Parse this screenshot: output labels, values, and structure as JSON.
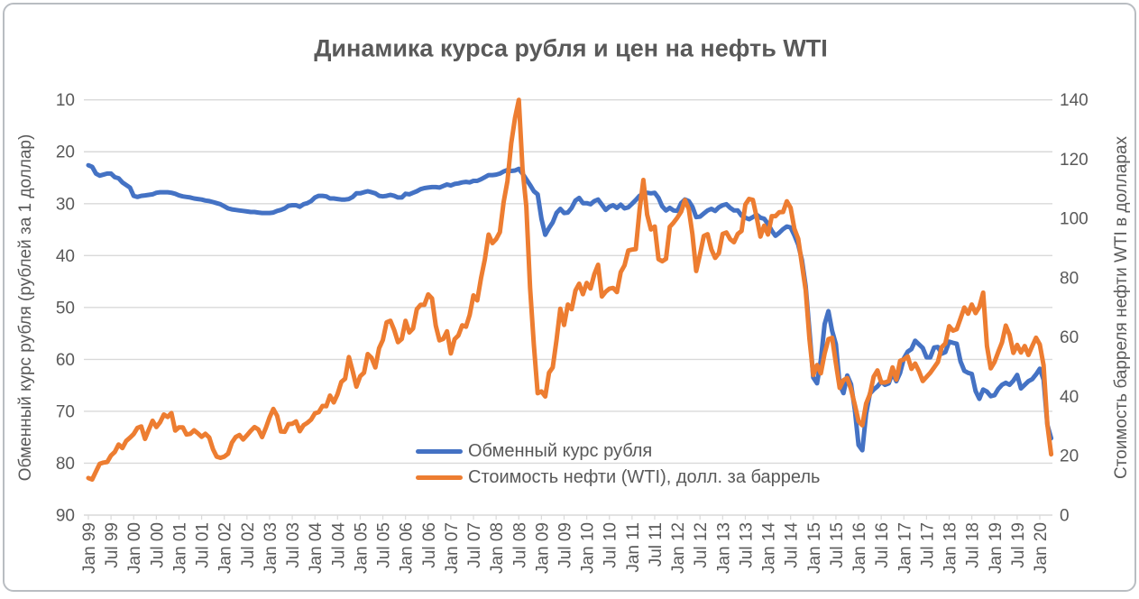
{
  "window": {
    "border_color": "#b9bdc2",
    "background": "#ffffff"
  },
  "chart_data": {
    "type": "line",
    "title": "Динамика курса рубля и цен на нефть WTI",
    "title_color": "#595959",
    "grid": true,
    "gridline_color": "#d9d9d9",
    "text_color": "#595959",
    "x_frequency": "monthly",
    "x_start": "Jan 1999",
    "x_end": "Apr 2020",
    "x_tick_interval_months": 6,
    "x_tick_labels": [
      "Jan 99",
      "Jul 99",
      "Jan 00",
      "Jul 00",
      "Jan 01",
      "Jul 01",
      "Jan 02",
      "Jul 02",
      "Jan 03",
      "Jul 03",
      "Jan 04",
      "Jul 04",
      "Jan 05",
      "Jul 05",
      "Jan 06",
      "Jul 06",
      "Jan 07",
      "Jul 07",
      "Jan 08",
      "Jul 08",
      "Jan 09",
      "Jul 09",
      "Jan 10",
      "Jul 10",
      "Jan 11",
      "Jul 11",
      "Jan 12",
      "Jul 12",
      "Jan 13",
      "Jul 13",
      "Jan 14",
      "Jul 14",
      "Jan 15",
      "Jul 15",
      "Jan 16",
      "Jul 16",
      "Jan 17",
      "Jul 17",
      "Jan 18",
      "Jul 18",
      "Jan 19",
      "Jul 19",
      "Jan 20"
    ],
    "left_axis": {
      "label": "Обменный курс рубля (рублей за 1 доллар)",
      "min": 10,
      "max": 90,
      "tick_step": 10,
      "inverted": true,
      "ticks": [
        10,
        20,
        30,
        40,
        50,
        60,
        70,
        80,
        90
      ]
    },
    "right_axis": {
      "label": "Стоимость барреля нефти WTI в долларах",
      "min": 0,
      "max": 140,
      "tick_step": 20,
      "ticks": [
        0,
        20,
        40,
        60,
        80,
        100,
        120,
        140
      ]
    },
    "legend": {
      "position": "inside-bottom-center"
    },
    "series": [
      {
        "name": "Обменный курс рубля",
        "axis": "left",
        "color": "#4472C4",
        "values": [
          22.6,
          22.9,
          24.2,
          24.6,
          24.4,
          24.2,
          24.2,
          24.9,
          25.1,
          25.9,
          26.4,
          26.9,
          28.5,
          28.7,
          28.5,
          28.4,
          28.3,
          28.2,
          27.9,
          27.8,
          27.8,
          27.8,
          27.9,
          28.1,
          28.4,
          28.6,
          28.7,
          28.8,
          29.0,
          29.1,
          29.2,
          29.4,
          29.5,
          29.7,
          29.9,
          30.1,
          30.5,
          30.9,
          31.1,
          31.2,
          31.3,
          31.4,
          31.5,
          31.6,
          31.6,
          31.7,
          31.8,
          31.8,
          31.8,
          31.7,
          31.4,
          31.2,
          30.9,
          30.4,
          30.3,
          30.3,
          30.6,
          30.1,
          29.9,
          29.5,
          28.8,
          28.5,
          28.5,
          28.6,
          29.0,
          29.0,
          29.1,
          29.2,
          29.2,
          29.1,
          28.7,
          28.0,
          28.0,
          27.8,
          27.6,
          27.8,
          28.0,
          28.5,
          28.6,
          28.5,
          28.3,
          28.5,
          28.8,
          28.8,
          28.1,
          28.2,
          27.9,
          27.6,
          27.2,
          27.0,
          26.9,
          26.8,
          26.8,
          26.9,
          26.6,
          26.3,
          26.5,
          26.2,
          26.1,
          25.9,
          25.8,
          25.9,
          25.6,
          25.6,
          25.3,
          24.9,
          24.5,
          24.5,
          24.4,
          24.2,
          23.8,
          23.5,
          23.7,
          23.6,
          23.3,
          24.2,
          25.3,
          26.4,
          27.6,
          28.2,
          32.9,
          36.0,
          34.7,
          33.6,
          31.8,
          31.0,
          31.8,
          31.7,
          30.8,
          29.4,
          28.9,
          29.9,
          29.9,
          30.1,
          29.5,
          29.2,
          30.2,
          31.2,
          30.6,
          30.3,
          30.8,
          30.2,
          30.9,
          30.7,
          30.0,
          29.3,
          28.5,
          28.1,
          27.9,
          28.0,
          27.9,
          28.9,
          30.5,
          31.3,
          30.8,
          31.3,
          31.4,
          29.9,
          29.2,
          29.5,
          30.6,
          32.6,
          32.5,
          31.9,
          31.3,
          31.0,
          31.4,
          30.7,
          30.3,
          30.1,
          30.8,
          31.3,
          31.3,
          32.3,
          32.7,
          33.0,
          32.6,
          32.1,
          32.7,
          32.9,
          33.9,
          35.2,
          36.2,
          35.6,
          34.9,
          34.4,
          34.6,
          36.1,
          37.9,
          40.9,
          45.9,
          54.5,
          63.5,
          64.6,
          60.1,
          53.2,
          50.7,
          54.5,
          57.1,
          64.9,
          66.5,
          63.1,
          64.8,
          69.7,
          76.5,
          77.5,
          70.5,
          66.6,
          65.8,
          65.2,
          64.3,
          64.9,
          64.6,
          62.6,
          64.2,
          62.6,
          59.8,
          58.5,
          58.0,
          56.4,
          57.1,
          57.8,
          59.6,
          59.6,
          57.7,
          57.6,
          58.9,
          58.6,
          56.6,
          56.8,
          57.0,
          60.4,
          62.2,
          62.6,
          62.8,
          66.1,
          67.6,
          65.8,
          66.2,
          67.1,
          66.9,
          65.7,
          64.9,
          64.5,
          64.9,
          64.1,
          63.0,
          65.6,
          64.9,
          64.2,
          63.8,
          62.9,
          61.8,
          63.9,
          72.6,
          75.2
        ]
      },
      {
        "name": "Стоимость нефти (WTI), долл. за баррель",
        "axis": "right",
        "color": "#ED7D31",
        "values": [
          12.5,
          12.0,
          14.7,
          17.3,
          17.7,
          17.9,
          20.1,
          21.3,
          23.8,
          22.6,
          25.0,
          26.1,
          27.3,
          29.4,
          29.9,
          25.7,
          28.8,
          31.8,
          29.7,
          31.3,
          33.9,
          33.1,
          34.4,
          28.5,
          29.6,
          29.6,
          27.2,
          27.4,
          28.6,
          27.6,
          26.4,
          27.4,
          26.2,
          22.2,
          19.7,
          19.3,
          19.7,
          20.7,
          24.4,
          26.3,
          27.0,
          25.5,
          26.9,
          28.4,
          29.7,
          28.9,
          26.3,
          29.4,
          33.0,
          35.8,
          33.5,
          28.2,
          28.1,
          30.7,
          30.8,
          31.6,
          28.3,
          30.3,
          31.1,
          32.2,
          34.3,
          34.7,
          36.8,
          36.7,
          40.3,
          38.0,
          40.8,
          44.9,
          46.0,
          53.3,
          48.5,
          43.3,
          46.8,
          48.0,
          54.3,
          53.0,
          49.8,
          56.3,
          59.0,
          65.0,
          65.5,
          62.4,
          58.3,
          59.4,
          65.5,
          61.6,
          62.9,
          69.4,
          70.9,
          70.9,
          74.4,
          73.1,
          63.9,
          58.9,
          59.4,
          62.0,
          54.5,
          59.3,
          60.6,
          64.0,
          63.5,
          67.5,
          74.1,
          72.4,
          79.9,
          86.2,
          94.6,
          91.7,
          93.0,
          95.4,
          105.6,
          112.6,
          125.4,
          133.9,
          140.0,
          116.7,
          104.1,
          76.6,
          57.3,
          41.1,
          41.7,
          40.0,
          48.0,
          49.8,
          59.0,
          69.6,
          64.1,
          71.0,
          69.4,
          75.7,
          78.0,
          74.5,
          78.3,
          76.4,
          81.2,
          84.4,
          73.7,
          75.3,
          76.3,
          76.6,
          75.2,
          81.9,
          84.2,
          89.2,
          89.5,
          89.7,
          102.9,
          113.0,
          101.3,
          96.3,
          97.3,
          86.3,
          85.6,
          86.4,
          97.2,
          98.6,
          100.3,
          102.3,
          106.2,
          103.3,
          94.7,
          82.3,
          87.9,
          94.1,
          94.7,
          89.6,
          86.7,
          88.3,
          94.8,
          95.3,
          93.0,
          92.0,
          94.8,
          95.8,
          104.7,
          106.6,
          106.3,
          100.5,
          93.9,
          97.6,
          94.6,
          100.8,
          100.8,
          102.1,
          102.2,
          105.8,
          103.6,
          96.5,
          93.2,
          84.4,
          75.8,
          59.3,
          47.2,
          50.6,
          47.8,
          54.5,
          59.3,
          59.8,
          51.2,
          42.9,
          45.5,
          46.2,
          42.4,
          37.2,
          31.7,
          30.3,
          37.6,
          40.8,
          46.7,
          48.8,
          44.7,
          44.7,
          45.2,
          49.8,
          45.7,
          52.0,
          52.5,
          53.5,
          49.3,
          51.1,
          48.5,
          45.2,
          46.6,
          48.0,
          49.8,
          51.6,
          56.6,
          57.9,
          63.7,
          62.2,
          62.7,
          66.3,
          70.0,
          67.9,
          71.0,
          68.1,
          70.2,
          75.0,
          57.0,
          49.5,
          51.6,
          55.0,
          58.2,
          63.9,
          60.8,
          54.7,
          57.4,
          54.8,
          57.0,
          54.0,
          57.0,
          59.8,
          57.5,
          50.5,
          30.5,
          20.5
        ]
      }
    ]
  }
}
